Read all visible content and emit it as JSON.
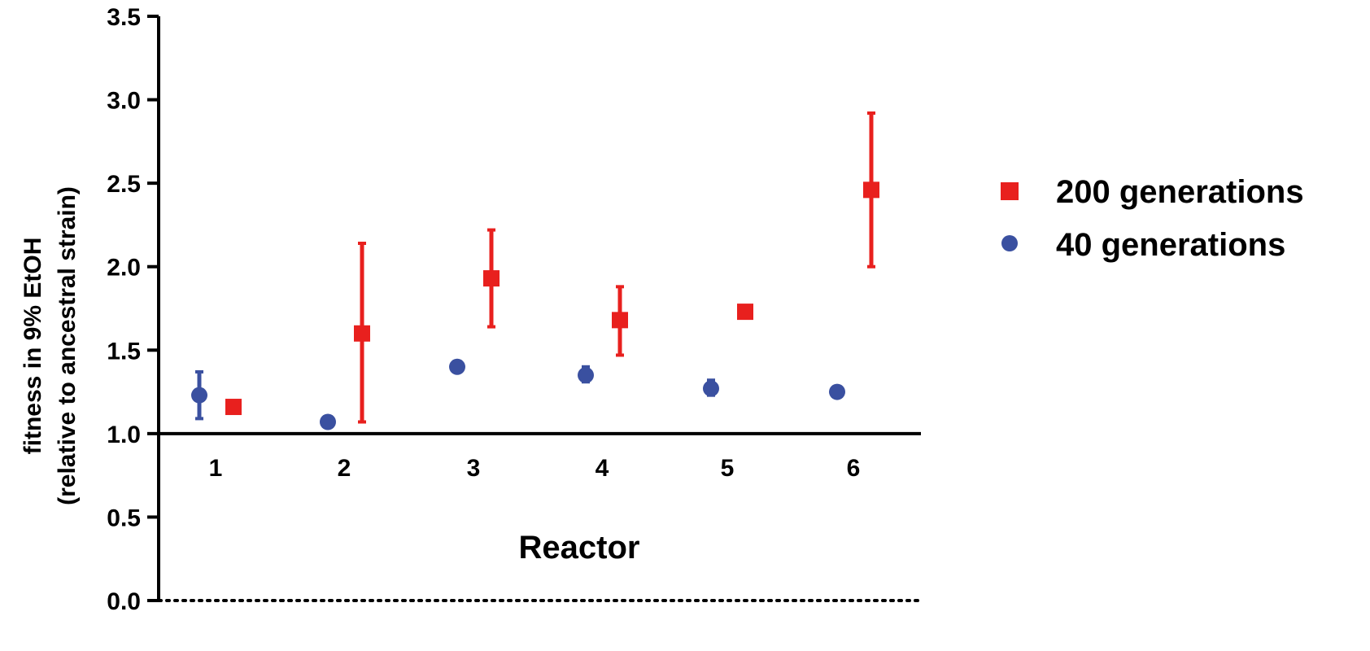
{
  "chart_data": {
    "type": "scatter",
    "title": "",
    "xlabel": "Reactor",
    "ylabel_line1": "fitness in 9% EtOH",
    "ylabel_line2": "(relative to ancestral strain)",
    "categories": [
      "1",
      "2",
      "3",
      "4",
      "5",
      "6"
    ],
    "ylim": [
      0.0,
      3.5
    ],
    "yticks": [
      "0.0",
      "0.5",
      "1.0",
      "1.5",
      "2.0",
      "2.5",
      "3.0",
      "3.5"
    ],
    "baseline": 1.0,
    "reference_line": 0.0,
    "legend_position": "right",
    "series": [
      {
        "name": "200 generations",
        "marker": "square",
        "color": "#e8201e",
        "values": [
          1.16,
          1.6,
          1.93,
          1.68,
          1.73,
          2.46
        ],
        "err_low": [
          1.14,
          1.07,
          1.64,
          1.47,
          1.71,
          2.0
        ],
        "err_high": [
          1.19,
          2.14,
          2.22,
          1.88,
          1.76,
          2.92
        ]
      },
      {
        "name": "40 generations",
        "marker": "circle",
        "color": "#3a50a0",
        "values": [
          1.23,
          1.07,
          1.4,
          1.35,
          1.27,
          1.25
        ],
        "err_low": [
          1.09,
          1.06,
          1.39,
          1.31,
          1.23,
          1.24
        ],
        "err_high": [
          1.37,
          1.08,
          1.41,
          1.4,
          1.32,
          1.27
        ]
      }
    ]
  }
}
